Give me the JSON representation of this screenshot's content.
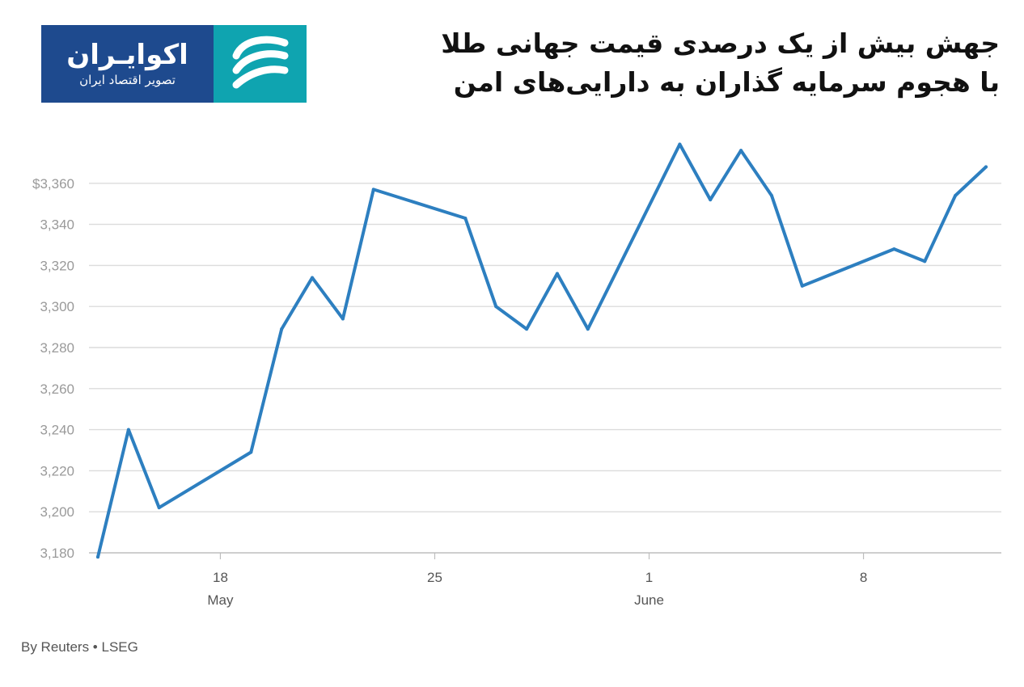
{
  "logo": {
    "name": "اکوایـران",
    "tagline": "تصویر اقتصاد ایران",
    "colors": {
      "text_bg": "#1e4a8e",
      "mark_bg": "#0fa4b0"
    },
    "icon": "ecoiran-swirl-icon"
  },
  "title": {
    "line1": "جهش بیش از یک درصدی قیمت جهانی طلا",
    "line2": "با هجوم سرمایه گذاران به دارایی‌های امن"
  },
  "source": "By Reuters • LSEG",
  "chart_data": {
    "type": "line",
    "title": "",
    "xlabel": "",
    "ylabel": "",
    "grid": true,
    "line_color": "#2d7fc0",
    "ylim": [
      3170,
      3380
    ],
    "y_ticks": [
      3180,
      3200,
      3220,
      3240,
      3260,
      3280,
      3300,
      3320,
      3340,
      3360
    ],
    "y_tick_labels": [
      "3,180",
      "3,200",
      "3,220",
      "3,240",
      "3,260",
      "3,280",
      "3,300",
      "3,320",
      "3,340",
      "$3,360"
    ],
    "x_ticks": [
      {
        "date": "2025-05-18",
        "label": "18",
        "sublabel": "May"
      },
      {
        "date": "2025-05-25",
        "label": "25",
        "sublabel": ""
      },
      {
        "date": "2025-06-01",
        "label": "1",
        "sublabel": "June"
      },
      {
        "date": "2025-06-08",
        "label": "8",
        "sublabel": ""
      }
    ],
    "xlim": [
      "2025-05-14",
      "2025-06-12"
    ],
    "series": [
      {
        "points": [
          {
            "date": "2025-05-14",
            "value": 3178
          },
          {
            "date": "2025-05-15",
            "value": 3240
          },
          {
            "date": "2025-05-16",
            "value": 3202
          },
          {
            "date": "2025-05-19",
            "value": 3229
          },
          {
            "date": "2025-05-20",
            "value": 3289
          },
          {
            "date": "2025-05-21",
            "value": 3314
          },
          {
            "date": "2025-05-22",
            "value": 3294
          },
          {
            "date": "2025-05-23",
            "value": 3357
          },
          {
            "date": "2025-05-26",
            "value": 3343
          },
          {
            "date": "2025-05-27",
            "value": 3300
          },
          {
            "date": "2025-05-28",
            "value": 3289
          },
          {
            "date": "2025-05-29",
            "value": 3316
          },
          {
            "date": "2025-05-30",
            "value": 3289
          },
          {
            "date": "2025-06-02",
            "value": 3379
          },
          {
            "date": "2025-06-03",
            "value": 3352
          },
          {
            "date": "2025-06-04",
            "value": 3376
          },
          {
            "date": "2025-06-05",
            "value": 3354
          },
          {
            "date": "2025-06-06",
            "value": 3310
          },
          {
            "date": "2025-06-09",
            "value": 3328
          },
          {
            "date": "2025-06-10",
            "value": 3322
          },
          {
            "date": "2025-06-11",
            "value": 3354
          },
          {
            "date": "2025-06-12",
            "value": 3368
          }
        ]
      }
    ]
  }
}
